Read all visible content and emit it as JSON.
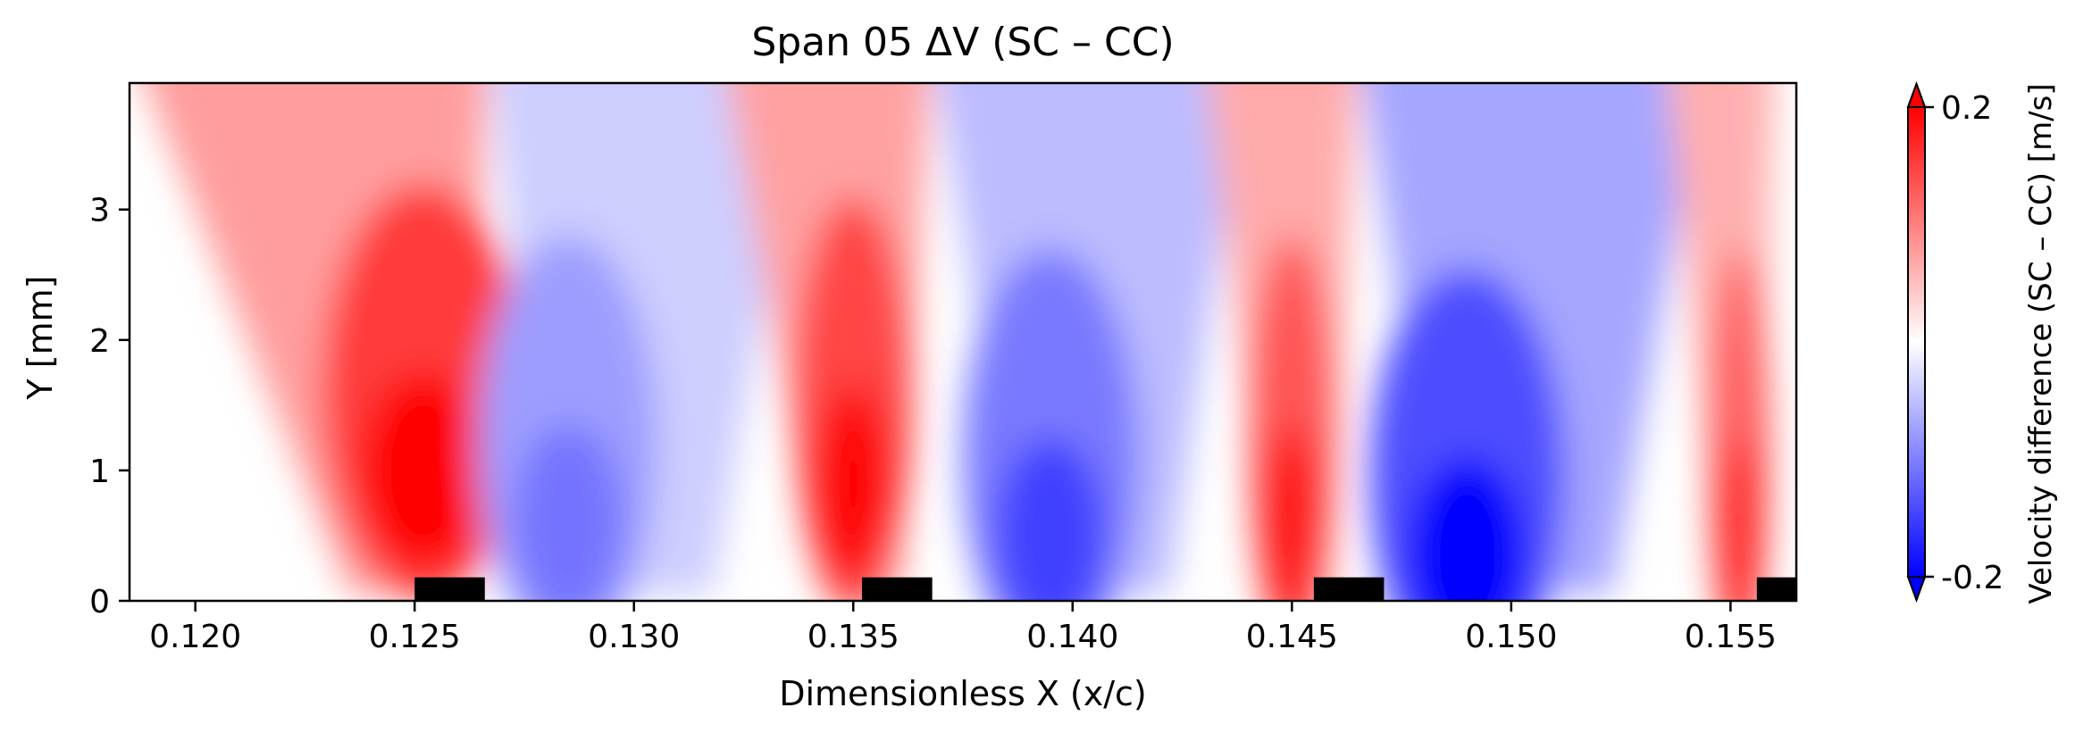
{
  "chart_data": {
    "type": "heatmap",
    "title": "Span 05  ΔV (SC – CC)",
    "xlabel": "Dimensionless X (x/c)",
    "ylabel": "Y [mm]",
    "xlim": [
      0.1185,
      0.1565
    ],
    "ylim": [
      0,
      3.97
    ],
    "xticks": [
      "0.120",
      "0.125",
      "0.130",
      "0.135",
      "0.140",
      "0.145",
      "0.150",
      "0.155"
    ],
    "xtick_values": [
      0.12,
      0.125,
      0.13,
      0.135,
      0.14,
      0.145,
      0.15,
      0.155
    ],
    "yticks": [
      "0",
      "1",
      "2",
      "3"
    ],
    "ytick_values": [
      0,
      1,
      2,
      3
    ],
    "colorbar": {
      "label": "Velocity difference (SC – CC) [m/s]",
      "min": -0.2,
      "max": 0.2,
      "ticks": [
        "0.2",
        "-0.2"
      ],
      "tick_values": [
        0.2,
        -0.2
      ],
      "cmap": "bwr",
      "extend": "both",
      "low_color": "#0000ff",
      "mid_color": "#ffffff",
      "high_color": "#ff0000"
    },
    "grid": false,
    "field_regions": [
      {
        "sign": "positive",
        "x_range": [
          0.1185,
          0.1267
        ],
        "peak_x": 0.1252,
        "peak_y": 1.0,
        "peak_value": 0.22
      },
      {
        "sign": "negative",
        "x_range": [
          0.1267,
          0.134
        ],
        "peak_x": 0.1285,
        "peak_y": 0.6,
        "peak_value": -0.11
      },
      {
        "sign": "positive",
        "x_range": [
          0.132,
          0.1368
        ],
        "peak_x": 0.135,
        "peak_y": 0.9,
        "peak_value": 0.21
      },
      {
        "sign": "negative",
        "x_range": [
          0.1368,
          0.144
        ],
        "peak_x": 0.1395,
        "peak_y": 0.5,
        "peak_value": -0.15
      },
      {
        "sign": "positive",
        "x_range": [
          0.143,
          0.1465
        ],
        "peak_x": 0.145,
        "peak_y": 0.6,
        "peak_value": 0.19
      },
      {
        "sign": "negative",
        "x_range": [
          0.1465,
          0.1545
        ],
        "peak_x": 0.149,
        "peak_y": 0.35,
        "peak_value": -0.2
      },
      {
        "sign": "positive",
        "x_range": [
          0.1535,
          0.156
        ],
        "peak_x": 0.1552,
        "peak_y": 0.5,
        "peak_value": 0.18
      }
    ],
    "wall_blocks": [
      {
        "x_start": 0.125,
        "x_end": 0.1266,
        "y_top": 0.18
      },
      {
        "x_start": 0.1352,
        "x_end": 0.1368,
        "y_top": 0.18
      },
      {
        "x_start": 0.1455,
        "x_end": 0.1471,
        "y_top": 0.18
      },
      {
        "x_start": 0.1556,
        "x_end": 0.1565,
        "y_top": 0.18
      }
    ]
  }
}
